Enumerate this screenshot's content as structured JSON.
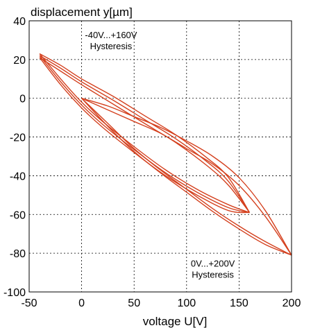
{
  "chart_data": {
    "type": "line",
    "xlabel": "voltage U[V]",
    "ylabel": "displacement y[µm]",
    "xlim": [
      -50,
      200
    ],
    "ylim": [
      -100,
      40
    ],
    "xticks": [
      "-50",
      "0",
      "50",
      "100",
      "150",
      "200"
    ],
    "yticks": [
      "40",
      "20",
      "0",
      "-20",
      "-40",
      "-60",
      "-80",
      "-100"
    ],
    "grid": true,
    "line_color": "#d4401e",
    "annotations": [
      {
        "lines": [
          "-40V...+160V",
          "Hysteresis"
        ],
        "at": [
          28,
          31
        ]
      },
      {
        "lines": [
          "0V...+200V",
          "Hysteresis"
        ],
        "at": [
          125,
          -87
        ]
      }
    ],
    "series": [
      {
        "range": "-40V...+160V",
        "loops": [
          {
            "rising": [
              [
                -40,
                23
              ],
              [
                -20,
                17
              ],
              [
                0,
                10
              ],
              [
                30,
                1
              ],
              [
                60,
                -9
              ],
              [
                90,
                -19
              ],
              [
                120,
                -31
              ],
              [
                140,
                -41
              ],
              [
                160,
                -59
              ]
            ],
            "falling": [
              [
                160,
                -59
              ],
              [
                140,
                -55
              ],
              [
                110,
                -47
              ],
              [
                80,
                -37
              ],
              [
                50,
                -25
              ],
              [
                20,
                -12
              ],
              [
                0,
                -2
              ],
              [
                -20,
                10
              ],
              [
                -40,
                23
              ]
            ]
          },
          {
            "rising": [
              [
                -40,
                22
              ],
              [
                -20,
                15.5
              ],
              [
                0,
                8.5
              ],
              [
                30,
                -1
              ],
              [
                60,
                -11
              ],
              [
                90,
                -21
              ],
              [
                120,
                -33
              ],
              [
                140,
                -43
              ],
              [
                160,
                -59
              ]
            ],
            "falling": [
              [
                160,
                -59
              ],
              [
                140,
                -56.5
              ],
              [
                110,
                -48.5
              ],
              [
                80,
                -38.5
              ],
              [
                50,
                -26.5
              ],
              [
                20,
                -13.5
              ],
              [
                0,
                -3.5
              ],
              [
                -20,
                8.5
              ],
              [
                -40,
                22
              ]
            ]
          },
          {
            "rising": [
              [
                -40,
                21
              ],
              [
                -20,
                14
              ],
              [
                0,
                7
              ],
              [
                30,
                -3
              ],
              [
                60,
                -13
              ],
              [
                90,
                -23
              ],
              [
                120,
                -35
              ],
              [
                140,
                -45
              ],
              [
                160,
                -59
              ]
            ],
            "falling": [
              [
                160,
                -59
              ],
              [
                140,
                -58
              ],
              [
                110,
                -50
              ],
              [
                80,
                -40
              ],
              [
                50,
                -28
              ],
              [
                20,
                -15
              ],
              [
                0,
                -5
              ],
              [
                -20,
                7
              ],
              [
                -40,
                21
              ]
            ]
          }
        ]
      },
      {
        "range": "0V...+200V",
        "loops": [
          {
            "rising": [
              [
                0,
                0
              ],
              [
                25,
                -4
              ],
              [
                50,
                -9.5
              ],
              [
                75,
                -15
              ],
              [
                100,
                -22
              ],
              [
                125,
                -30
              ],
              [
                150,
                -41
              ],
              [
                175,
                -58
              ],
              [
                200,
                -81
              ]
            ],
            "falling": [
              [
                200,
                -81
              ],
              [
                175,
                -74
              ],
              [
                150,
                -66
              ],
              [
                125,
                -57
              ],
              [
                100,
                -47
              ],
              [
                75,
                -37
              ],
              [
                50,
                -26
              ],
              [
                25,
                -13
              ],
              [
                0,
                0
              ]
            ]
          },
          {
            "rising": [
              [
                0,
                0
              ],
              [
                25,
                -6
              ],
              [
                50,
                -12
              ],
              [
                75,
                -18
              ],
              [
                100,
                -26
              ],
              [
                125,
                -34
              ],
              [
                150,
                -45
              ],
              [
                175,
                -61
              ],
              [
                200,
                -81
              ]
            ],
            "falling": [
              [
                200,
                -81
              ],
              [
                175,
                -75.5
              ],
              [
                150,
                -67.5
              ],
              [
                125,
                -58.5
              ],
              [
                100,
                -48.5
              ],
              [
                75,
                -38.5
              ],
              [
                50,
                -27.5
              ],
              [
                25,
                -14.5
              ],
              [
                0,
                0
              ]
            ]
          }
        ]
      }
    ]
  }
}
